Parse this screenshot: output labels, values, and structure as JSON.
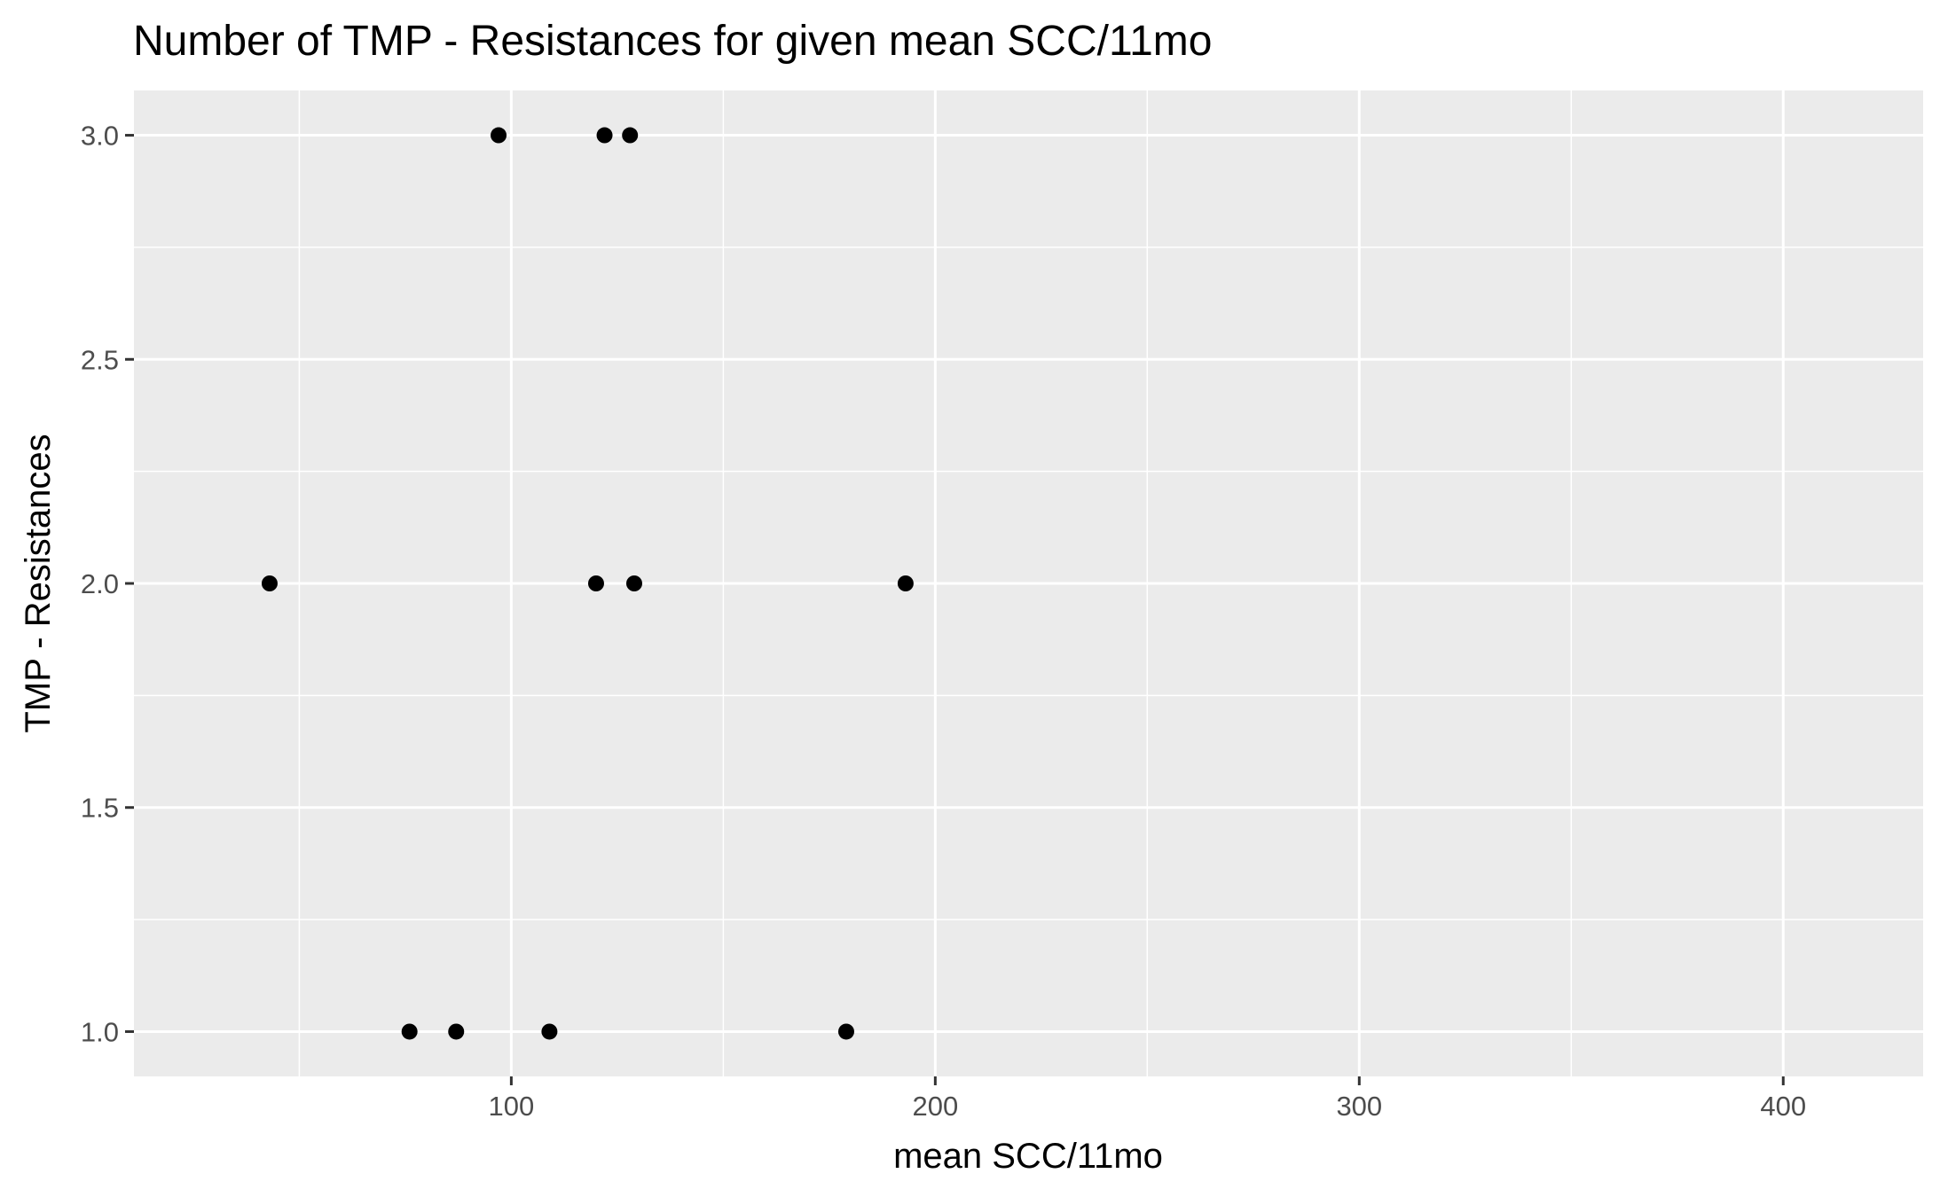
{
  "chart_data": {
    "type": "scatter",
    "title": "Number of TMP - Resistances for given mean SCC/11mo",
    "xlabel": "mean SCC/11mo",
    "ylabel": "TMP - Resistances",
    "xlim": [
      11,
      433
    ],
    "ylim": [
      0.9,
      3.1
    ],
    "x_ticks": [
      100,
      200,
      300,
      400
    ],
    "x_minor_ticks": [
      50,
      150,
      250,
      350
    ],
    "y_ticks": [
      1.0,
      1.5,
      2.0,
      2.5,
      3.0
    ],
    "y_minor_ticks": [
      1.25,
      1.75,
      2.25,
      2.75
    ],
    "x_tick_labels": [
      "100",
      "200",
      "300",
      "400"
    ],
    "y_tick_labels": [
      "1.0",
      "1.5",
      "2.0",
      "2.5",
      "3.0"
    ],
    "points": [
      {
        "x": 97,
        "y": 3
      },
      {
        "x": 122,
        "y": 3
      },
      {
        "x": 128,
        "y": 3
      },
      {
        "x": 43,
        "y": 2
      },
      {
        "x": 120,
        "y": 2
      },
      {
        "x": 129,
        "y": 2
      },
      {
        "x": 193,
        "y": 2
      },
      {
        "x": 76,
        "y": 1
      },
      {
        "x": 87,
        "y": 1
      },
      {
        "x": 109,
        "y": 1
      },
      {
        "x": 179,
        "y": 1
      }
    ],
    "grid": true,
    "legend": "none",
    "colors": {
      "panel": "#ebebeb",
      "grid": "#ffffff",
      "point": "#000000",
      "tick": "#333333"
    }
  }
}
